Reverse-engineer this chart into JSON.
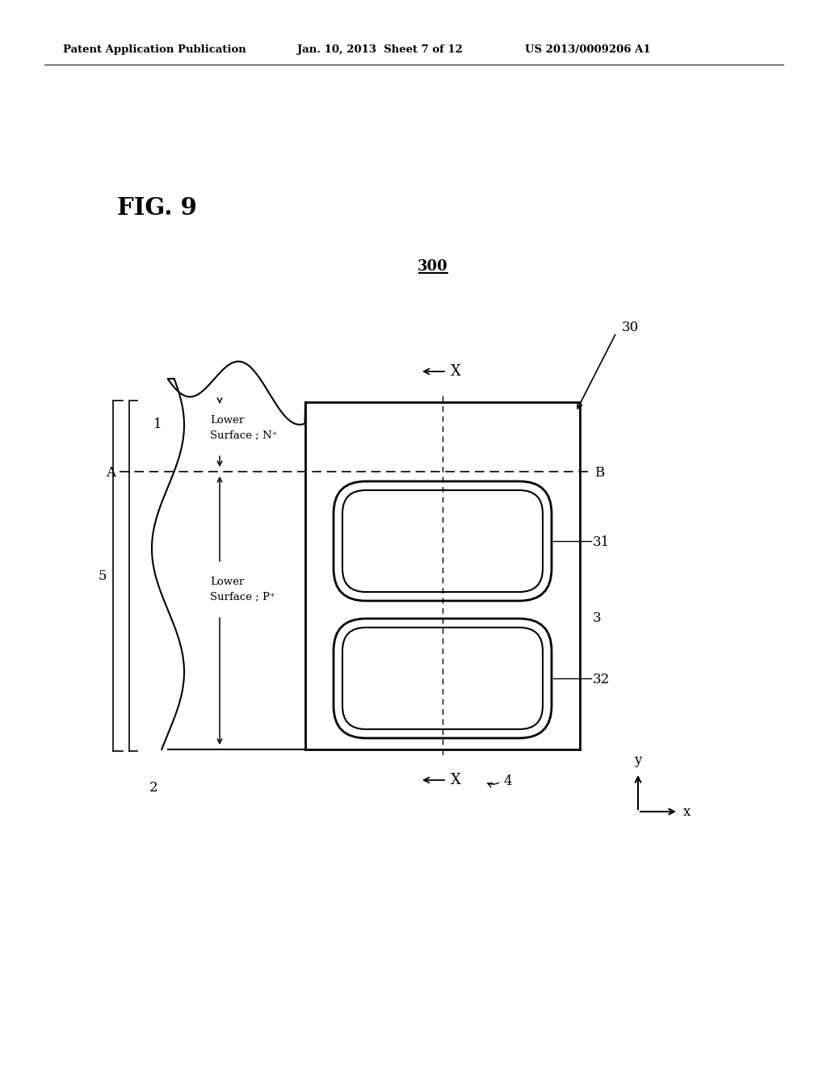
{
  "bg_color": "#ffffff",
  "header_left": "Patent Application Publication",
  "header_mid": "Jan. 10, 2013  Sheet 7 of 12",
  "header_right": "US 2013/0009206 A1",
  "fig_label": "FIG. 9",
  "device_label": "300",
  "label_30": "30",
  "label_31": "31",
  "label_32": "32",
  "label_1": "1",
  "label_2": "2",
  "label_3": "3",
  "label_4": "4",
  "label_5": "5",
  "label_A": "A",
  "label_B": "B",
  "label_X_top": "X",
  "label_X_bot": "X",
  "line_color": "#000000"
}
